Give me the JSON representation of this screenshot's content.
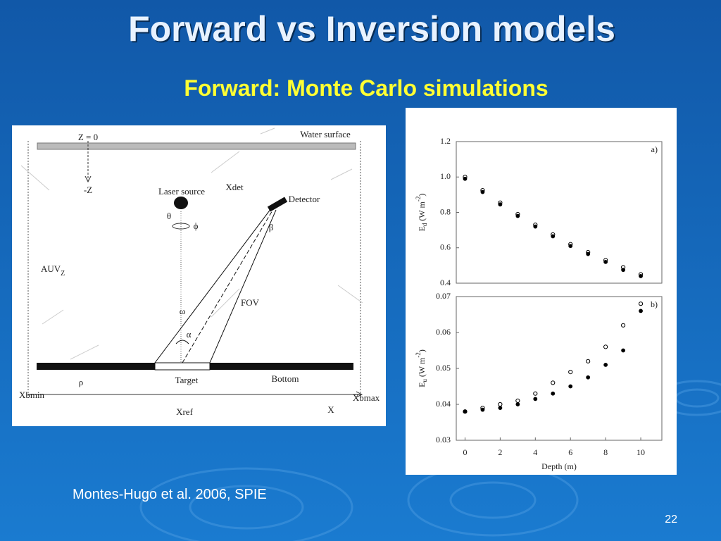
{
  "slide": {
    "title": "Forward vs Inversion models",
    "subtitle": "Forward: Monte Carlo simulations",
    "citation": "Montes-Hugo et al. 2006, SPIE",
    "page_number": "22"
  },
  "diagram": {
    "z0": "Z = 0",
    "water_surface": "Water surface",
    "minus_z": "-Z",
    "laser_source": "Laser source",
    "xdet": "Xdet",
    "detector": "Detector",
    "theta": "θ",
    "phi": "ϕ",
    "beta": "β",
    "auv": "AUV",
    "auv_sub": "Z",
    "omega": "ω",
    "fov": "FOV",
    "alpha": "α",
    "rho": "ρ",
    "target": "Target",
    "bottom": "Bottom",
    "xbmin": "Xbmin",
    "xbmax": "Xbmax",
    "xref": "Xref",
    "x": "X"
  },
  "chart_data": [
    {
      "type": "scatter",
      "panel_label": "a)",
      "y_label": [
        "E",
        "d",
        " (W m",
        "-2",
        ")"
      ],
      "x": [
        0,
        1,
        2,
        3,
        4,
        5,
        6,
        7,
        8,
        9,
        10
      ],
      "series": [
        {
          "color": "#000000",
          "marker": "open",
          "values": [
            1.0,
            0.925,
            0.855,
            0.79,
            0.73,
            0.675,
            0.62,
            0.575,
            0.53,
            0.49,
            0.45
          ]
        },
        {
          "color": "#000000",
          "marker": "filled",
          "values": [
            0.99,
            0.915,
            0.845,
            0.78,
            0.72,
            0.665,
            0.61,
            0.565,
            0.52,
            0.475,
            0.44
          ]
        }
      ],
      "xlim": [
        -0.5,
        11.2
      ],
      "ylim": [
        0.4,
        1.2
      ],
      "yticks": [
        0.4,
        0.6,
        0.8,
        {
          "value": 1,
          "label": "1.0"
        },
        1.2
      ]
    },
    {
      "type": "scatter",
      "panel_label": "b)",
      "y_label": [
        "E",
        "u",
        " (W m",
        "-2",
        ")"
      ],
      "x_label": "Depth (m)",
      "x": [
        0,
        1,
        2,
        3,
        4,
        5,
        6,
        7,
        8,
        9,
        10
      ],
      "series": [
        {
          "color": "#000000",
          "marker": "open",
          "values": [
            0.038,
            0.039,
            0.04,
            0.041,
            0.043,
            0.046,
            0.049,
            0.052,
            0.056,
            0.062,
            0.068
          ]
        },
        {
          "color": "#000000",
          "marker": "filled",
          "values": [
            0.038,
            0.0385,
            0.039,
            0.04,
            0.0415,
            0.043,
            0.045,
            0.0475,
            0.051,
            0.055,
            0.066
          ]
        }
      ],
      "xlim": [
        -0.5,
        11.2
      ],
      "ylim": [
        0.03,
        0.07
      ],
      "xticks": [
        0,
        2,
        4,
        6,
        8,
        10
      ],
      "yticks": [
        0.03,
        0.04,
        0.05,
        0.06,
        0.07
      ]
    }
  ]
}
